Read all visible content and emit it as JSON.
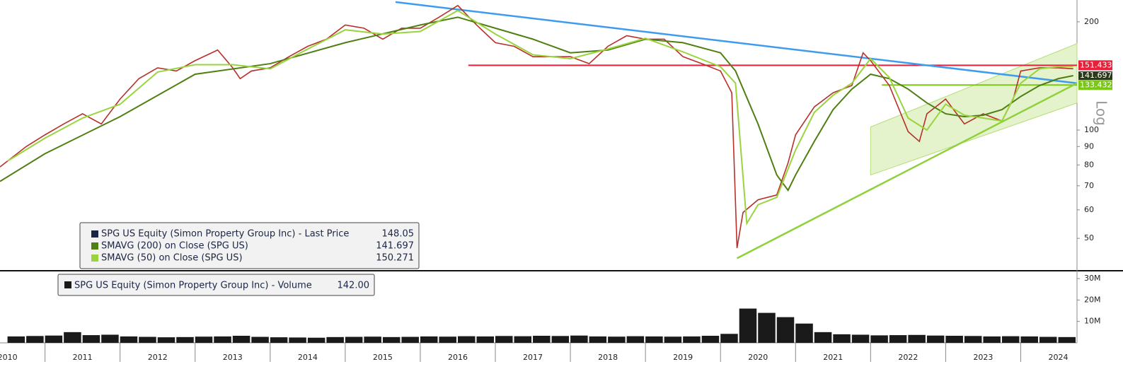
{
  "chart_data": [
    {
      "type": "line",
      "log_scale": true,
      "y_label": "Log",
      "xlim": [
        2010.4,
        2024.75
      ],
      "ylim": [
        41,
        230
      ],
      "yticks": [
        50,
        60,
        70,
        80,
        90,
        100,
        200
      ],
      "series": [
        {
          "name": "SPG US Equity (Simon Property Group Inc) - Last Price",
          "legend_value": 148.05,
          "color": "#b8302a",
          "swatch": "#1a2546",
          "x": [
            2010.4,
            2010.75,
            2011.0,
            2011.25,
            2011.5,
            2011.75,
            2012.0,
            2012.25,
            2012.5,
            2012.75,
            2013.0,
            2013.3,
            2013.5,
            2013.6,
            2013.75,
            2014.0,
            2014.25,
            2014.5,
            2014.75,
            2015.0,
            2015.25,
            2015.5,
            2015.75,
            2016.0,
            2016.25,
            2016.5,
            2016.75,
            2017.0,
            2017.25,
            2017.5,
            2017.75,
            2018.0,
            2018.25,
            2018.5,
            2018.75,
            2019.0,
            2019.25,
            2019.5,
            2019.75,
            2020.0,
            2020.15,
            2020.22,
            2020.3,
            2020.5,
            2020.75,
            2020.9,
            2021.0,
            2021.25,
            2021.5,
            2021.75,
            2021.9,
            2022.0,
            2022.25,
            2022.5,
            2022.65,
            2022.75,
            2023.0,
            2023.25,
            2023.5,
            2023.75,
            2023.9,
            2024.0,
            2024.25,
            2024.5,
            2024.7
          ],
          "values": [
            79,
            90,
            97,
            104,
            111,
            104,
            122,
            139,
            149,
            146,
            156,
            167,
            149,
            139,
            146,
            149,
            160,
            171,
            179,
            196,
            192,
            179,
            192,
            192,
            206,
            222,
            196,
            175,
            171,
            160,
            160,
            160,
            153,
            171,
            183,
            179,
            179,
            160,
            153,
            146,
            127,
            47,
            59,
            64,
            66,
            81,
            97,
            116,
            127,
            133,
            164,
            156,
            133,
            99,
            93,
            111,
            122,
            104,
            111,
            106,
            122,
            146,
            149,
            149,
            148.05
          ]
        },
        {
          "name": "SMAVG (200)  on Close (SPG US)",
          "legend_value": 141.697,
          "color": "#4f7f12",
          "swatch": "#4f7f12",
          "x": [
            2010.4,
            2011,
            2012,
            2013,
            2014,
            2015,
            2016,
            2016.5,
            2017,
            2017.5,
            2018,
            2018.5,
            2019,
            2019.5,
            2020,
            2020.2,
            2020.5,
            2020.75,
            2020.9,
            2021,
            2021.25,
            2021.5,
            2021.75,
            2022,
            2022.25,
            2022.5,
            2022.75,
            2023,
            2023.25,
            2023.5,
            2023.75,
            2024,
            2024.25,
            2024.5,
            2024.7
          ],
          "values": [
            72,
            86,
            109,
            143,
            153,
            175,
            196,
            206,
            192,
            179,
            164,
            167,
            179,
            175,
            164,
            146,
            104,
            75,
            68,
            75,
            93,
            114,
            130,
            143,
            139,
            130,
            119,
            111,
            109,
            110,
            114,
            124,
            133,
            139,
            141.697
          ]
        },
        {
          "name": "SMAVG (50)  on Close (SPG US)",
          "legend_value": 150.271,
          "color": "#9ad43c",
          "swatch": "#9ad43c",
          "x": [
            2010.5,
            2011,
            2011.5,
            2012,
            2012.5,
            2013,
            2013.5,
            2014,
            2014.5,
            2015,
            2015.5,
            2016,
            2016.5,
            2017,
            2017.5,
            2018,
            2018.5,
            2019,
            2019.5,
            2020,
            2020.2,
            2020.35,
            2020.5,
            2020.75,
            2021,
            2021.25,
            2021.5,
            2021.75,
            2022,
            2022.25,
            2022.5,
            2022.75,
            2023,
            2023.25,
            2023.5,
            2023.75,
            2024,
            2024.25,
            2024.5,
            2024.7
          ],
          "values": [
            82,
            95,
            108,
            118,
            145,
            152,
            152,
            148,
            168,
            190,
            185,
            188,
            215,
            185,
            162,
            158,
            168,
            180,
            165,
            150,
            135,
            55,
            62,
            65,
            88,
            112,
            125,
            135,
            158,
            140,
            108,
            100,
            118,
            110,
            108,
            106,
            135,
            148,
            150,
            150.271
          ]
        }
      ],
      "trendlines": [
        {
          "color": "#3d9bf0",
          "x": [
            2015.67,
            2024.75
          ],
          "values": [
            227,
            135
          ]
        },
        {
          "color": "#8fd13a",
          "x": [
            2020.22,
            2024.75
          ],
          "values": [
            44,
            135
          ]
        }
      ],
      "channel": {
        "color": "#c9e89a",
        "x": [
          2022.0,
          2024.75
        ],
        "upper": [
          102,
          174
        ],
        "lower": [
          75,
          119
        ]
      },
      "levels": [
        {
          "value": 151.433,
          "color": "#e8203a",
          "x_start": 2016.64
        },
        {
          "value": 133.432,
          "color": "#7cc61a",
          "x_start": 2022.15
        }
      ]
    },
    {
      "type": "bar",
      "legend_name": "SPG US Equity (Simon Property Group Inc) - Volume",
      "legend_value": "142.00",
      "color": "#1a1a1a",
      "xlim": [
        2010.4,
        2024.75
      ],
      "xticks": [
        2010,
        2011,
        2012,
        2013,
        2014,
        2015,
        2016,
        2017,
        2018,
        2019,
        2020,
        2021,
        2022,
        2023,
        2024
      ],
      "ylim": [
        0,
        33000000
      ],
      "yticks": [
        {
          "value": 10000000,
          "label": "10M"
        },
        {
          "value": 20000000,
          "label": "20M"
        },
        {
          "value": 30000000,
          "label": "30M"
        }
      ],
      "x": [
        2010.5,
        2010.75,
        2011.0,
        2011.25,
        2011.5,
        2011.75,
        2012.0,
        2012.25,
        2012.5,
        2012.75,
        2013.0,
        2013.25,
        2013.5,
        2013.75,
        2014.0,
        2014.25,
        2014.5,
        2014.75,
        2015.0,
        2015.25,
        2015.5,
        2015.75,
        2016.0,
        2016.25,
        2016.5,
        2016.75,
        2017.0,
        2017.25,
        2017.5,
        2017.75,
        2018.0,
        2018.25,
        2018.5,
        2018.75,
        2019.0,
        2019.25,
        2019.5,
        2019.75,
        2020.0,
        2020.25,
        2020.5,
        2020.75,
        2021.0,
        2021.25,
        2021.5,
        2021.75,
        2022.0,
        2022.25,
        2022.5,
        2022.75,
        2023.0,
        2023.25,
        2023.5,
        2023.75,
        2024.0,
        2024.25,
        2024.5
      ],
      "values": [
        3000000,
        3200000,
        3400000,
        5000000,
        3600000,
        3800000,
        3000000,
        2800000,
        2600000,
        2700000,
        2900000,
        3000000,
        3300000,
        2800000,
        2600000,
        2500000,
        2400000,
        2700000,
        2800000,
        2900000,
        2700000,
        2800000,
        3000000,
        2900000,
        3100000,
        3000000,
        3200000,
        3100000,
        3300000,
        3200000,
        3400000,
        3000000,
        2900000,
        3100000,
        3000000,
        2900000,
        3000000,
        3300000,
        4200000,
        16000000,
        14000000,
        12000000,
        9000000,
        5000000,
        4000000,
        3800000,
        3500000,
        3600000,
        3700000,
        3400000,
        3300000,
        3200000,
        3000000,
        3100000,
        3000000,
        2800000,
        2700000
      ]
    }
  ]
}
